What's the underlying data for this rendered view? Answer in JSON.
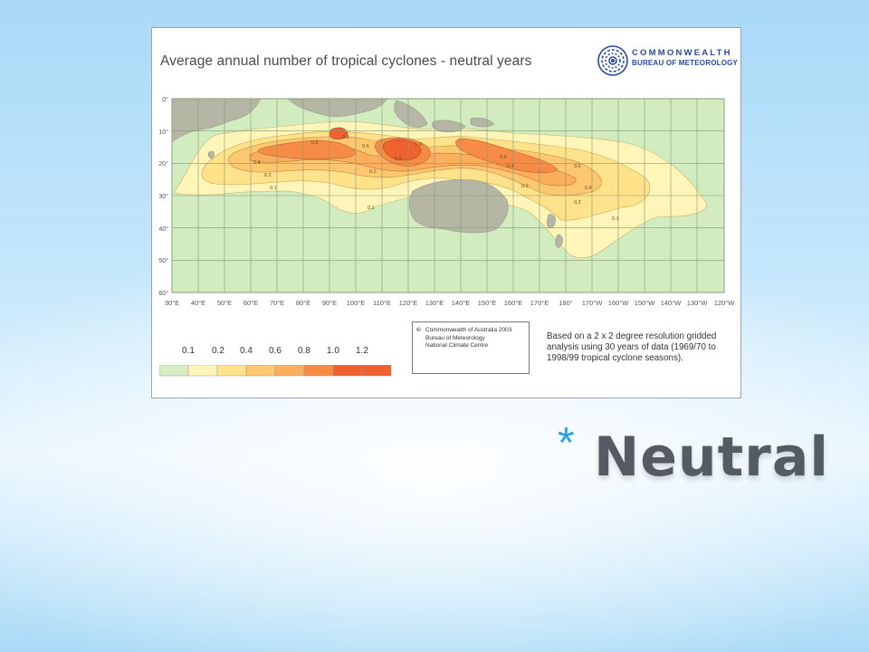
{
  "slide": {
    "heading": "Neutral",
    "bullet": "*"
  },
  "map": {
    "title": "Average annual number of tropical cyclones - neutral years",
    "logo": {
      "line1": "COMMONWEALTH",
      "line2": "BUREAU OF METEOROLOGY"
    },
    "lat_labels": [
      "0°",
      "10°",
      "20°",
      "30°",
      "40°",
      "50°",
      "60°"
    ],
    "lon_labels": [
      "30°E",
      "40°E",
      "50°E",
      "60°E",
      "70°E",
      "80°E",
      "90°E",
      "100°E",
      "110°E",
      "120°E",
      "130°E",
      "140°E",
      "150°E",
      "160°E",
      "170°E",
      "180°",
      "170°W",
      "160°W",
      "150°W",
      "140°W",
      "130°W",
      "120°W"
    ],
    "contour_labels": [
      "0.1",
      "0.2",
      "0.4",
      "0.6",
      "0.8",
      "1.0",
      "1.2"
    ],
    "legend": {
      "values": [
        "0.1",
        "0.2",
        "0.4",
        "0.6",
        "0.8",
        "1.0",
        "1.2"
      ],
      "colors": [
        "#d6ecc3",
        "#fff5b8",
        "#ffe28a",
        "#fdc870",
        "#fbae5c",
        "#f68b45",
        "#ef6230"
      ]
    },
    "copyright": {
      "symbol": "©",
      "line1": "Commonwealth of Australia 2003",
      "line2": "Bureau of Meteorology",
      "line3": "National Climate Centre"
    },
    "note": "Based on a 2 x 2 degree resolution gridded analysis using 30 years of data (1969/70 to 1998/99 tropical cyclone seasons).",
    "colors": {
      "ocean": "#d2ecc0",
      "land": "#b6b6a4",
      "grid": "#7f9a78",
      "accent": "#27a3e0"
    }
  }
}
